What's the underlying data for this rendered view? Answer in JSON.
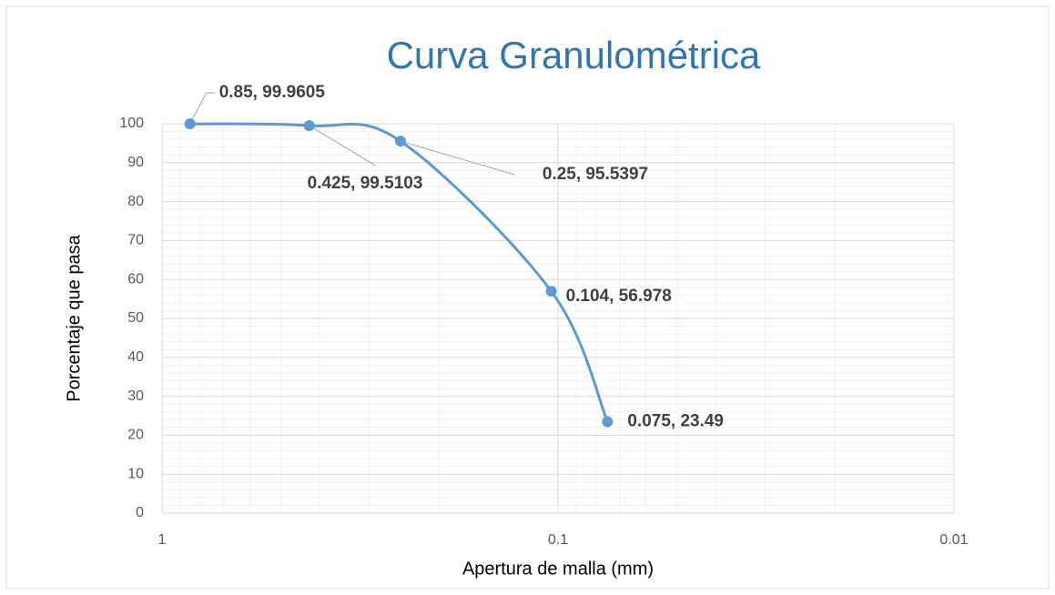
{
  "chart_data": {
    "type": "scatter",
    "title": "Curva Granulométrica",
    "x_label": "Apertura de malla  (mm)",
    "y_label": "Porcentaje que pasa",
    "x": [
      0.85,
      0.425,
      0.25,
      0.104,
      0.075
    ],
    "series": [
      {
        "name": "Curva",
        "color": "#5b9bd5",
        "values": [
          99.9605,
          99.5103,
          95.5397,
          56.978,
          23.49
        ],
        "value_labels": [
          "0.85, 99.9605",
          "0.425, 99.5103",
          "0.25, 95.5397",
          "0.104, 56.978",
          "0.075, 23.49"
        ]
      }
    ],
    "xlim": [
      1,
      0.01
    ],
    "xticks": [
      1,
      0.1,
      0.01
    ],
    "xlog": true,
    "x_reversed": true,
    "ylim": [
      0,
      100
    ],
    "yticks": [
      0,
      10,
      20,
      30,
      40,
      50,
      60,
      70,
      80,
      90,
      100
    ],
    "grid": true
  }
}
